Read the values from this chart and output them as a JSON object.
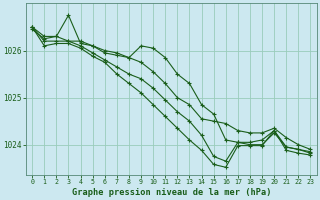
{
  "background_color": "#cce8f0",
  "grid_color": "#99ccbb",
  "line_color": "#1a5e1a",
  "marker_color": "#1a5e1a",
  "title": "Graphe pression niveau de la mer (hPa)",
  "title_fontsize": 6.2,
  "xlim": [
    -0.5,
    23.5
  ],
  "ylim": [
    1023.35,
    1027.0
  ],
  "yticks": [
    1024,
    1025,
    1026
  ],
  "xticks": [
    0,
    1,
    2,
    3,
    4,
    5,
    6,
    7,
    8,
    9,
    10,
    11,
    12,
    13,
    14,
    15,
    16,
    17,
    18,
    19,
    20,
    21,
    22,
    23
  ],
  "series": [
    [
      1026.5,
      1026.3,
      1026.3,
      1026.2,
      1026.2,
      1026.1,
      1026.0,
      1025.95,
      1025.85,
      1025.75,
      1025.55,
      1025.3,
      1025.0,
      1024.85,
      1024.55,
      1024.5,
      1024.45,
      1024.3,
      1024.25,
      1024.25,
      1024.35,
      1024.15,
      1024.0,
      1023.9
    ],
    [
      1026.45,
      1026.25,
      1026.3,
      1026.75,
      1026.15,
      1026.1,
      1025.95,
      1025.9,
      1025.85,
      1026.1,
      1026.05,
      1025.85,
      1025.5,
      1025.3,
      1024.85,
      1024.65,
      1024.1,
      1024.05,
      1024.0,
      1024.0,
      1024.25,
      1023.95,
      1023.9,
      1023.85
    ],
    [
      1026.5,
      1026.2,
      1026.2,
      1026.2,
      1026.1,
      1025.95,
      1025.8,
      1025.65,
      1025.5,
      1025.4,
      1025.2,
      1024.95,
      1024.7,
      1024.5,
      1024.2,
      1023.75,
      1023.65,
      1024.05,
      1024.05,
      1024.1,
      1024.3,
      1023.95,
      1023.9,
      1023.82
    ],
    [
      1026.5,
      1026.1,
      1026.15,
      1026.15,
      1026.05,
      1025.88,
      1025.75,
      1025.5,
      1025.3,
      1025.1,
      1024.85,
      1024.6,
      1024.35,
      1024.1,
      1023.88,
      1023.58,
      1023.52,
      1023.98,
      1023.98,
      1023.98,
      1024.3,
      1023.88,
      1023.82,
      1023.78
    ]
  ]
}
